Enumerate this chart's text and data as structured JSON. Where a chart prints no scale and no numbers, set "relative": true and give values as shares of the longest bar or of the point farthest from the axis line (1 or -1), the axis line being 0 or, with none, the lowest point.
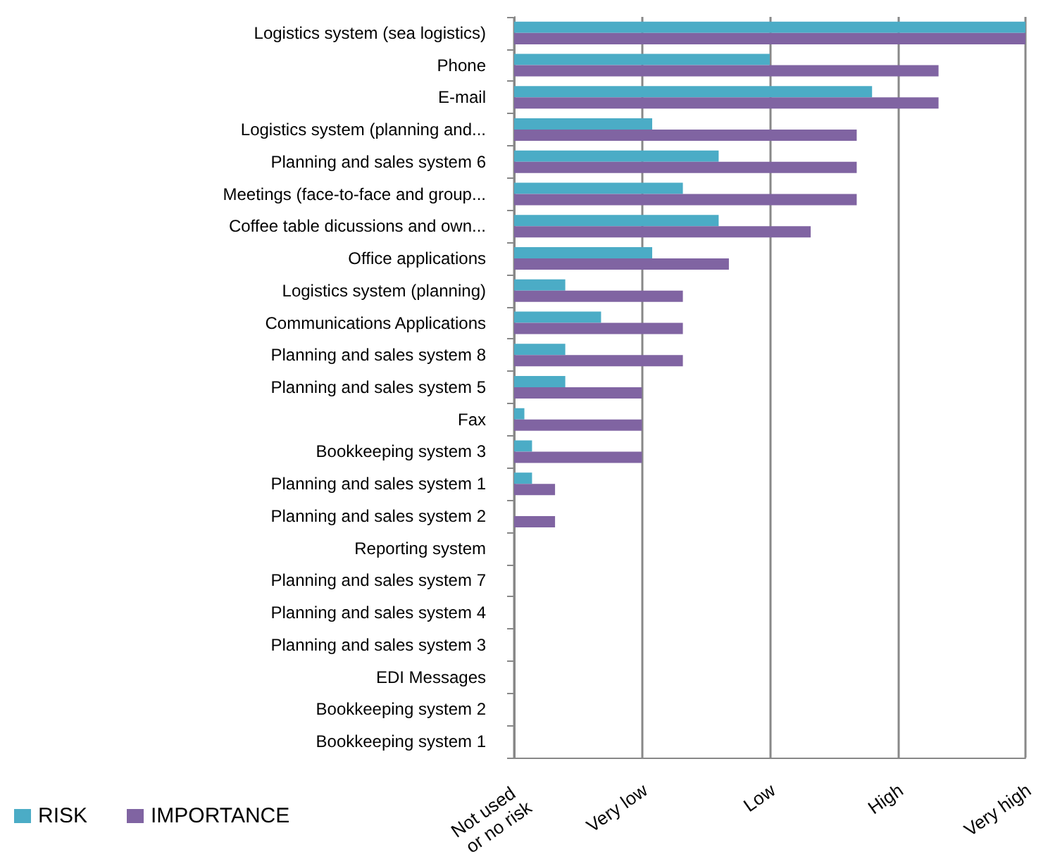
{
  "chart_data": {
    "type": "bar",
    "orientation": "horizontal",
    "relative": true,
    "categories": [
      "Logistics system (sea logistics)",
      "Phone",
      "E-mail",
      "Logistics system (planning and...",
      "Planning and sales system 6",
      "Meetings (face-to-face and group...",
      "Coffee table dicussions and own...",
      "Office applications",
      "Logistics system (planning)",
      "Communications Applications",
      "Planning and sales system 8",
      "Planning and sales system 5",
      "Fax",
      "Bookkeeping system 3",
      "Planning and sales system 1",
      "Planning and sales system 2",
      "Reporting system",
      "Planning and sales system 7",
      "Planning and sales system 4",
      "Planning and sales system 3",
      "EDI Messages",
      "Bookkeeping system 2",
      "Bookkeeping system 1"
    ],
    "series": [
      {
        "name": "RISK",
        "color": "#4bacc6",
        "values": [
          1,
          0.5,
          0.7,
          0.27,
          0.4,
          0.33,
          0.4,
          0.27,
          0.1,
          0.17,
          0.1,
          0.1,
          0.02,
          0.035,
          0.035,
          0,
          0,
          0,
          0,
          0,
          0,
          0,
          0
        ]
      },
      {
        "name": "IMPORTANCE",
        "color": "#8064a2",
        "values": [
          1,
          0.83,
          0.83,
          0.67,
          0.67,
          0.67,
          0.58,
          0.42,
          0.33,
          0.33,
          0.33,
          0.25,
          0.25,
          0.25,
          0.08,
          0.08,
          0,
          0,
          0,
          0,
          0,
          0,
          0
        ]
      }
    ],
    "annotations": [
      "Not used or no risk",
      "Very low",
      "Low",
      "High",
      "Very high"
    ],
    "grid": "x",
    "legend": "bottom left"
  }
}
